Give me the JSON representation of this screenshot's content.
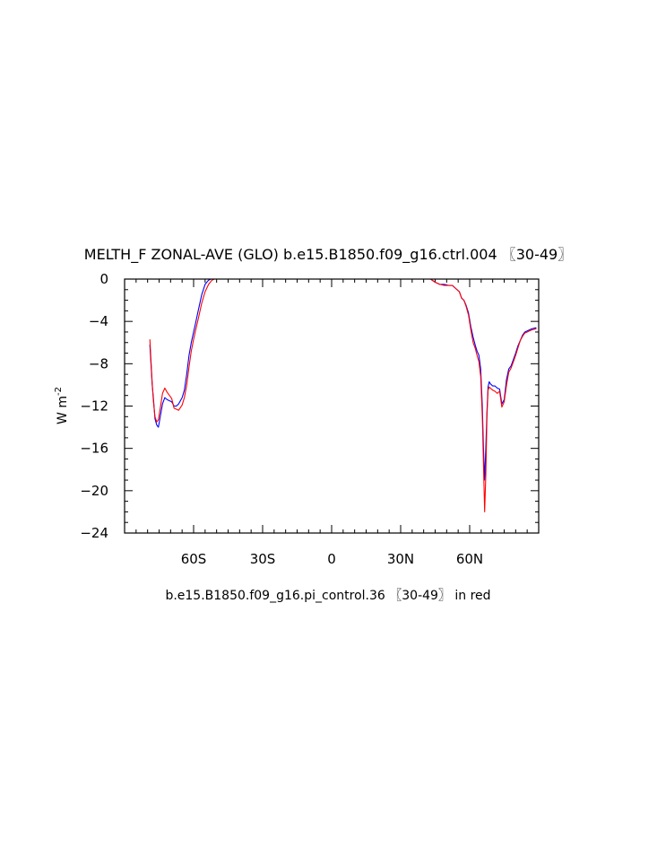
{
  "chart_data": {
    "type": "line",
    "title": "MELTH_F ZONAL-AVE (GLO) b.e15.B1850.f09_g16.ctrl.004 〖30-49〗",
    "subtitle": "b.e15.B1850.f09_g16.pi_control.36 〖30-49〗 in red",
    "ylabel_main": "W m",
    "ylabel_sup": "-2",
    "xlim": [
      -90,
      90
    ],
    "ylim": [
      -24,
      0
    ],
    "x_ticks": [
      {
        "value": -60,
        "label": "60S"
      },
      {
        "value": -30,
        "label": "30S"
      },
      {
        "value": 0,
        "label": "0"
      },
      {
        "value": 30,
        "label": "30N"
      },
      {
        "value": 60,
        "label": "60N"
      }
    ],
    "y_ticks": [
      {
        "value": 0,
        "label": "0"
      },
      {
        "value": -4,
        "label": "−4"
      },
      {
        "value": -8,
        "label": "−8"
      },
      {
        "value": -12,
        "label": "−12"
      },
      {
        "value": -16,
        "label": "−16"
      },
      {
        "value": -20,
        "label": "−20"
      },
      {
        "value": -24,
        "label": "−24"
      }
    ],
    "series": [
      {
        "color": "#0000ff",
        "x": [
          -79,
          -78,
          -77.5,
          -76.8,
          -76,
          -75.3,
          -74.5,
          -73.5,
          -72.5,
          -71.5,
          -70.5,
          -69.5,
          -68.5,
          -67.5,
          -66.5,
          -65,
          -64,
          -63,
          -62,
          -61,
          -60,
          -59,
          -58,
          -56.5,
          -55,
          -53.5,
          -52.5,
          -51.5,
          -50,
          40,
          43,
          45,
          47,
          49,
          51,
          52.5,
          54,
          55.5,
          56.5,
          57.5,
          58.5,
          59.5,
          60.5,
          61.5,
          62.5,
          63.2,
          64,
          64.8,
          65.5,
          66,
          66.5,
          67,
          67.5,
          68,
          68.5,
          69,
          70,
          71,
          72,
          73,
          74,
          75,
          76,
          77,
          78,
          79,
          80,
          81,
          82,
          83,
          84,
          85,
          86,
          87,
          88,
          89
        ],
        "y": [
          -6.2,
          -10,
          -11.2,
          -13.2,
          -13.8,
          -14,
          -13,
          -11.8,
          -11.2,
          -11.4,
          -11.5,
          -11.6,
          -12,
          -12,
          -11.8,
          -11.2,
          -10.5,
          -9,
          -7.2,
          -6,
          -5,
          -4,
          -3,
          -1.5,
          -0.5,
          -0.1,
          0,
          0,
          0,
          0,
          0,
          -0.3,
          -0.5,
          -0.5,
          -0.6,
          -0.6,
          -0.9,
          -1.2,
          -1.8,
          -2,
          -2.5,
          -3.2,
          -4.5,
          -5.5,
          -6.3,
          -6.8,
          -7.2,
          -8.5,
          -12,
          -16,
          -19,
          -16,
          -12.5,
          -10.2,
          -9.7,
          -9.9,
          -10.1,
          -10.1,
          -10.3,
          -10.4,
          -11.8,
          -11.4,
          -9.5,
          -8.5,
          -8.2,
          -7.6,
          -7,
          -6.3,
          -5.8,
          -5.3,
          -5,
          -4.9,
          -4.8,
          -4.7,
          -4.65,
          -4.6
        ]
      },
      {
        "color": "#ff0000",
        "x": [
          -79,
          -78,
          -77.5,
          -76.8,
          -76,
          -75.3,
          -74.5,
          -73.5,
          -72.5,
          -71.5,
          -70.5,
          -69.5,
          -68.5,
          -67.5,
          -66.5,
          -65,
          -64,
          -63,
          -62,
          -61,
          -60,
          -59,
          -58,
          -56.5,
          -55,
          -53.5,
          -52,
          -51,
          -50,
          40,
          43,
          45,
          47,
          49,
          51,
          52.5,
          54,
          55.5,
          56.5,
          57.5,
          58.5,
          59.5,
          60.5,
          61.5,
          62.5,
          63.2,
          64,
          64.8,
          65.5,
          66,
          66.5,
          67,
          67.5,
          68,
          68.5,
          69,
          70,
          71,
          72,
          73,
          74,
          75,
          76,
          77,
          78,
          79,
          80,
          81,
          82,
          83,
          84,
          85,
          86,
          87,
          88,
          89
        ],
        "y": [
          -5.7,
          -9.8,
          -11.5,
          -13,
          -13.5,
          -13.3,
          -12.2,
          -10.8,
          -10.3,
          -10.7,
          -11,
          -11.3,
          -12.2,
          -12.3,
          -12.4,
          -11.9,
          -11.2,
          -10,
          -8.3,
          -6.8,
          -5.7,
          -4.7,
          -3.8,
          -2.3,
          -1.2,
          -0.5,
          -0.1,
          0,
          0,
          0,
          0,
          -0.3,
          -0.5,
          -0.6,
          -0.6,
          -0.6,
          -0.9,
          -1.2,
          -1.8,
          -2,
          -2.6,
          -3.4,
          -4.8,
          -6,
          -6.6,
          -7.2,
          -7.8,
          -9.2,
          -13,
          -17.5,
          -22,
          -18.5,
          -13,
          -10.5,
          -10.2,
          -10.3,
          -10.5,
          -10.6,
          -10.8,
          -10.6,
          -12.1,
          -11.6,
          -10,
          -8.8,
          -8.4,
          -7.8,
          -7.2,
          -6.5,
          -5.8,
          -5.4,
          -5.1,
          -5,
          -4.9,
          -4.8,
          -4.75,
          -4.7
        ]
      }
    ]
  }
}
